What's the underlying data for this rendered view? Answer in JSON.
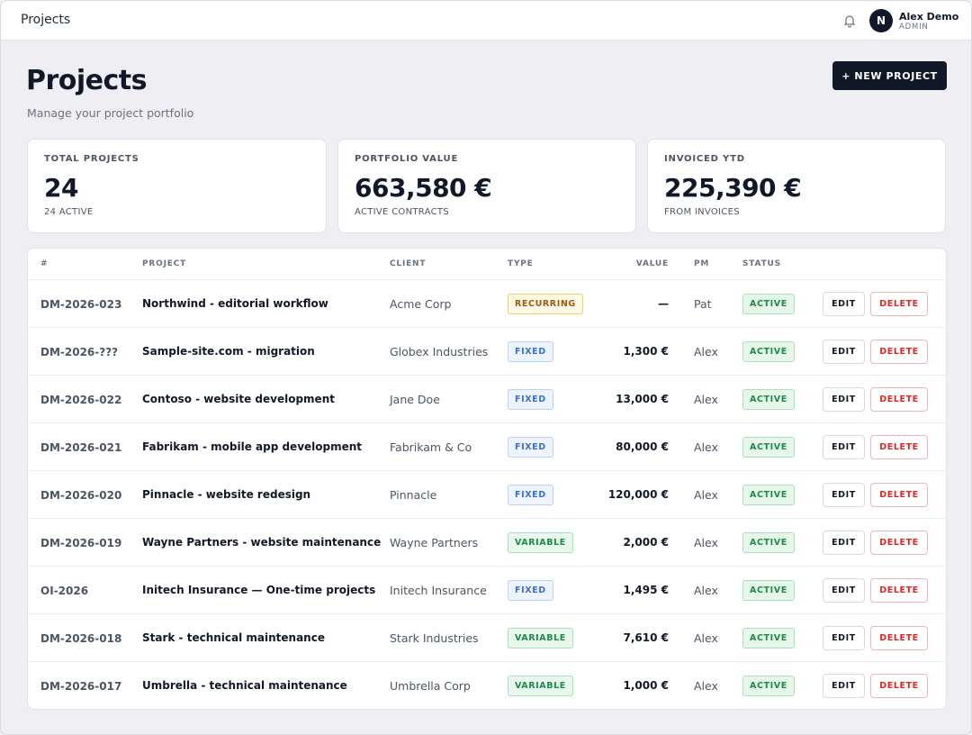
{
  "topbar": {
    "title": "Projects",
    "user": {
      "initial": "N",
      "name": "Alex Demo",
      "role": "ADMIN"
    }
  },
  "header": {
    "title": "Projects",
    "subtitle": "Manage your project portfolio",
    "button": "+ NEW PROJECT"
  },
  "stats": [
    {
      "label": "TOTAL PROJECTS",
      "value": "24",
      "note": "24 ACTIVE"
    },
    {
      "label": "PORTFOLIO VALUE",
      "value": "663,580 €",
      "note": "ACTIVE CONTRACTS"
    },
    {
      "label": "INVOICED YTD",
      "value": "225,390 €",
      "note": "FROM INVOICES"
    }
  ],
  "table": {
    "columns": [
      "#",
      "PROJECT",
      "CLIENT",
      "TYPE",
      "VALUE",
      "PM",
      "STATUS"
    ],
    "actions": [
      "EDIT",
      "DELETE"
    ],
    "rows": [
      [
        "DM-2026-023",
        "Northwind - editorial workflow",
        "Acme Corp",
        "RECURRING",
        "—",
        "Pat",
        "ACTIVE"
      ],
      [
        "DM-2026-???",
        "Sample-site.com - migration",
        "Globex Industries",
        "FIXED",
        "1,300 €",
        "Alex",
        "ACTIVE"
      ],
      [
        "DM-2026-022",
        "Contoso - website development",
        "Jane Doe",
        "FIXED",
        "13,000 €",
        "Alex",
        "ACTIVE"
      ],
      [
        "DM-2026-021",
        "Fabrikam - mobile app development",
        "Fabrikam & Co",
        "FIXED",
        "80,000 €",
        "Alex",
        "ACTIVE"
      ],
      [
        "DM-2026-020",
        "Pinnacle - website redesign",
        "Pinnacle",
        "FIXED",
        "120,000 €",
        "Alex",
        "ACTIVE"
      ],
      [
        "DM-2026-019",
        "Wayne Partners - website maintenance",
        "Wayne Partners",
        "VARIABLE",
        "2,000 €",
        "Alex",
        "ACTIVE"
      ],
      [
        "OI-2026",
        "Initech Insurance — One-time projects",
        "Initech Insurance",
        "FIXED",
        "1,495 €",
        "Alex",
        "ACTIVE"
      ],
      [
        "DM-2026-018",
        "Stark - technical maintenance",
        "Stark Industries",
        "VARIABLE",
        "7,610 €",
        "Alex",
        "ACTIVE"
      ],
      [
        "DM-2026-017",
        "Umbrella - technical maintenance",
        "Umbrella Corp",
        "VARIABLE",
        "1,000 €",
        "Alex",
        "ACTIVE"
      ]
    ]
  }
}
